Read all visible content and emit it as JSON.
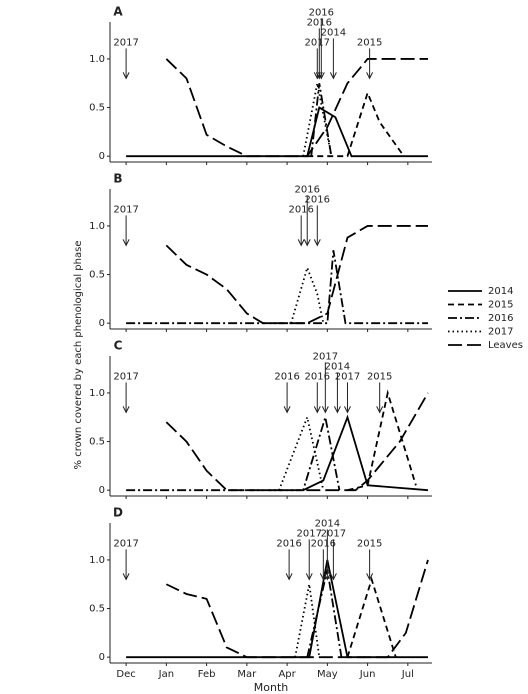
{
  "chart_data": [
    {
      "type": "line",
      "panel": "A",
      "xlim": [
        -0.4,
        7.6
      ],
      "ylim": [
        -0.06,
        1.38
      ],
      "yticks": [
        0,
        0.5,
        {
          "value": 1,
          "label": "1.0"
        }
      ],
      "series": [
        {
          "name": "2014",
          "color": "#000000",
          "linestyle": "solid",
          "x": [
            0,
            4.5,
            4.8,
            5.2,
            5.6,
            7.5
          ],
          "values": [
            0,
            0,
            0.5,
            0.4,
            0,
            0
          ]
        },
        {
          "name": "2015",
          "color": "#000000",
          "linestyle": "dashed",
          "x": [
            4.5,
            5.5,
            6.0,
            6.3,
            6.9
          ],
          "values": [
            0,
            0,
            0.65,
            0.35,
            0
          ]
        },
        {
          "name": "2016",
          "color": "#000000",
          "linestyle": "dashdot",
          "x": [
            4.6,
            4.8,
            5.1
          ],
          "values": [
            0,
            0.75,
            0
          ]
        },
        {
          "name": "2017",
          "color": "#000000",
          "linestyle": "dotted",
          "x": [
            4.4,
            4.75,
            5.1
          ],
          "values": [
            0,
            0.75,
            0
          ]
        },
        {
          "name": "Leaves",
          "color": "#000000",
          "linestyle": "longdash",
          "x": [
            1,
            1.5,
            2,
            2.5,
            3,
            4.5,
            5,
            5.5,
            6,
            7.5
          ],
          "values": [
            1,
            0.8,
            0.22,
            0.1,
            0,
            0,
            0.3,
            0.75,
            1,
            1
          ]
        }
      ],
      "annotations": [
        {
          "text": "2017",
          "x": 0
        },
        {
          "text": "2017",
          "x": 4.75
        },
        {
          "text": "2014",
          "x": 5.15
        },
        {
          "text": "2016",
          "x": 4.8
        },
        {
          "text": "2016",
          "x": 4.85
        },
        {
          "text": "2015",
          "x": 6.05
        }
      ]
    },
    {
      "type": "line",
      "panel": "B",
      "xlim": [
        -0.4,
        7.6
      ],
      "ylim": [
        -0.06,
        1.38
      ],
      "yticks": [
        0,
        0.5,
        {
          "value": 1,
          "label": "1.0"
        }
      ],
      "series": [
        {
          "name": "2016",
          "color": "#000000",
          "linestyle": "dashdot",
          "x": [
            0,
            5.0,
            5.15,
            5.45,
            7.5
          ],
          "values": [
            0,
            0,
            0.75,
            0,
            0
          ]
        },
        {
          "name": "2017",
          "color": "#000000",
          "linestyle": "dotted",
          "x": [
            4.1,
            4.5,
            4.75,
            4.9
          ],
          "values": [
            0,
            0.57,
            0.3,
            0
          ]
        },
        {
          "name": "Leaves",
          "color": "#000000",
          "linestyle": "longdash",
          "x": [
            1,
            1.5,
            2,
            2.5,
            3,
            3.4,
            4.5,
            5,
            5.5,
            6,
            7.5
          ],
          "values": [
            0.8,
            0.6,
            0.5,
            0.35,
            0.1,
            0,
            0,
            0.1,
            0.88,
            1,
            1
          ]
        }
      ],
      "annotations": [
        {
          "text": "2017",
          "x": 0
        },
        {
          "text": "2016",
          "x": 4.35
        },
        {
          "text": "2016",
          "x": 4.75
        },
        {
          "text": "2016",
          "x": 4.5
        }
      ]
    },
    {
      "type": "line",
      "panel": "C",
      "xlim": [
        -0.4,
        7.6
      ],
      "ylim": [
        -0.06,
        1.38
      ],
      "yticks": [
        0,
        0.5,
        {
          "value": 1,
          "label": "1.0"
        }
      ],
      "series": [
        {
          "name": "2014",
          "color": "#000000",
          "linestyle": "solid",
          "x": [
            4.4,
            4.9,
            5.5,
            6,
            7.5
          ],
          "values": [
            0,
            0.1,
            0.75,
            0.05,
            0
          ]
        },
        {
          "name": "2015",
          "color": "#000000",
          "linestyle": "dashed",
          "x": [
            5.5,
            6,
            6.5,
            7.2
          ],
          "values": [
            0,
            0.05,
            1,
            0.05
          ]
        },
        {
          "name": "2016",
          "color": "#000000",
          "linestyle": "dashdot",
          "x": [
            0,
            4.4,
            4.95,
            5.3
          ],
          "values": [
            0,
            0,
            0.75,
            0
          ]
        },
        {
          "name": "2017",
          "color": "#000000",
          "linestyle": "dotted",
          "x": [
            3.8,
            4.5,
            4.9
          ],
          "values": [
            0,
            0.75,
            0
          ]
        },
        {
          "name": "Leaves",
          "color": "#000000",
          "linestyle": "longdash",
          "x": [
            1,
            1.5,
            2,
            2.5,
            5.7,
            6,
            6.8,
            7.5
          ],
          "values": [
            0.7,
            0.5,
            0.2,
            0,
            0,
            0.1,
            0.5,
            1
          ]
        }
      ],
      "annotations": [
        {
          "text": "2017",
          "x": 0
        },
        {
          "text": "2016",
          "x": 4.0
        },
        {
          "text": "2016",
          "x": 4.75
        },
        {
          "text": "2014",
          "x": 5.25
        },
        {
          "text": "2017",
          "x": 5.5
        },
        {
          "text": "2017",
          "x": 4.95
        },
        {
          "text": "2015",
          "x": 6.3
        }
      ]
    },
    {
      "type": "line",
      "panel": "D",
      "xlim": [
        -0.4,
        7.6
      ],
      "ylim": [
        -0.06,
        1.38
      ],
      "yticks": [
        0,
        0.5,
        {
          "value": 1,
          "label": "1.0"
        }
      ],
      "xticks": [
        {
          "value": 0,
          "label": "Dec"
        },
        {
          "value": 1,
          "label": "Jan"
        },
        {
          "value": 2,
          "label": "Feb"
        },
        {
          "value": 3,
          "label": "Mar"
        },
        {
          "value": 4,
          "label": "Apr"
        },
        {
          "value": 5,
          "label": "May"
        },
        {
          "value": 6,
          "label": "Jun"
        },
        {
          "value": 7,
          "label": "Jul"
        }
      ],
      "xlabel": "Month",
      "series": [
        {
          "name": "2014",
          "color": "#000000",
          "linestyle": "solid",
          "x": [
            0,
            4.55,
            5.0,
            5.5,
            7.5
          ],
          "values": [
            0,
            0,
            1,
            0,
            0
          ]
        },
        {
          "name": "2015",
          "color": "#000000",
          "linestyle": "dashed",
          "x": [
            5.5,
            6.1,
            6.7
          ],
          "values": [
            0,
            0.8,
            0
          ]
        },
        {
          "name": "2016",
          "color": "#000000",
          "linestyle": "dashdot",
          "x": [
            4.5,
            5.0,
            5.35
          ],
          "values": [
            0,
            0.9,
            0
          ]
        },
        {
          "name": "2017",
          "color": "#000000",
          "linestyle": "dotted",
          "x": [
            4.2,
            4.55,
            4.8
          ],
          "values": [
            0,
            0.75,
            0
          ]
        },
        {
          "name": "Leaves",
          "color": "#000000",
          "linestyle": "longdash",
          "x": [
            1,
            1.5,
            2,
            2.5,
            3,
            6.5,
            6.95,
            7.5
          ],
          "values": [
            0.75,
            0.65,
            0.6,
            0.1,
            0,
            0,
            0.25,
            1
          ]
        }
      ],
      "annotations": [
        {
          "text": "2017",
          "x": 0
        },
        {
          "text": "2016",
          "x": 4.05
        },
        {
          "text": "2017",
          "x": 4.55
        },
        {
          "text": "2016",
          "x": 4.9
        },
        {
          "text": "2017",
          "x": 5.15
        },
        {
          "text": "2014",
          "x": 5.0
        },
        {
          "text": "2015",
          "x": 6.05
        }
      ]
    }
  ],
  "ylabel": "% crown covered by each phenological phase"
}
